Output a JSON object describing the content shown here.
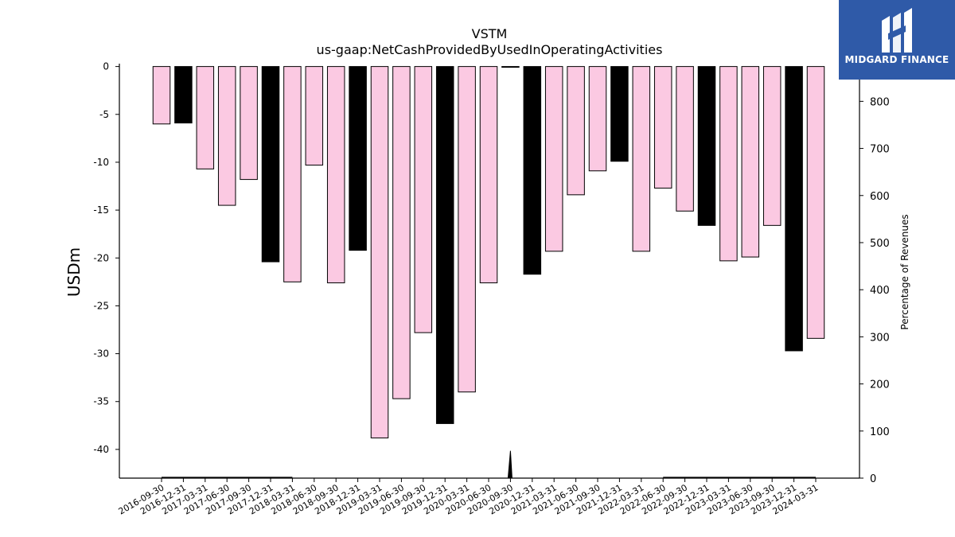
{
  "chart_data": {
    "type": "bar",
    "title": "VSTM",
    "subtitle": "us-gaap:NetCashProvidedByUsedInOperatingActivities",
    "ylabel": "USDm",
    "ylabel_right": "Percentage of Revenues",
    "ylim": [
      -43,
      0.3
    ],
    "ylim_right": [
      0,
      880
    ],
    "yticks": [
      0,
      -5,
      -10,
      -15,
      -20,
      -25,
      -30,
      -35,
      -40
    ],
    "yticks_right": [
      0,
      100,
      200,
      300,
      400,
      500,
      600,
      700,
      800
    ],
    "categories": [
      "2016-09-30",
      "2016-12-31",
      "2017-03-31",
      "2017-06-30",
      "2017-09-30",
      "2017-12-31",
      "2018-03-31",
      "2018-06-30",
      "2018-09-30",
      "2018-12-31",
      "2019-03-31",
      "2019-06-30",
      "2019-09-30",
      "2019-12-31",
      "2020-03-31",
      "2020-06-30",
      "2020-09-30",
      "2020-12-31",
      "2021-03-31",
      "2021-06-30",
      "2021-09-30",
      "2021-12-31",
      "2022-03-31",
      "2022-06-30",
      "2022-09-30",
      "2022-12-31",
      "2023-03-31",
      "2023-06-30",
      "2023-09-30",
      "2023-12-31",
      "2024-03-31"
    ],
    "values": [
      -6.0,
      -5.9,
      -10.7,
      -14.5,
      -11.8,
      -20.4,
      -22.5,
      -10.3,
      -22.6,
      -19.2,
      -38.8,
      -34.7,
      -27.8,
      -37.3,
      -34.0,
      -22.6,
      0.0,
      -21.7,
      -19.3,
      -13.4,
      -10.9,
      -9.9,
      -19.3,
      -12.7,
      -15.1,
      -16.6,
      -20.3,
      -19.9,
      -16.6,
      -29.7,
      -28.4
    ],
    "highlight": [
      false,
      true,
      false,
      false,
      false,
      true,
      false,
      false,
      false,
      true,
      false,
      false,
      false,
      true,
      false,
      false,
      false,
      true,
      false,
      false,
      false,
      true,
      false,
      false,
      false,
      true,
      false,
      false,
      false,
      true,
      false
    ],
    "percent_of_revenues": [
      1,
      1,
      1,
      1,
      1,
      1,
      1,
      null,
      null,
      null,
      null,
      null,
      null,
      null,
      null,
      null,
      58,
      null,
      null,
      null,
      null,
      null,
      null,
      1,
      1,
      1,
      1,
      1,
      1,
      1,
      1
    ],
    "colors": {
      "bar": "#fbc9e2",
      "bar_highlight": "#000000",
      "edge": "#000000",
      "line": "#000000"
    },
    "grid": false,
    "legend": "none"
  },
  "logo": {
    "text": "MIDGARD FINANCE"
  }
}
